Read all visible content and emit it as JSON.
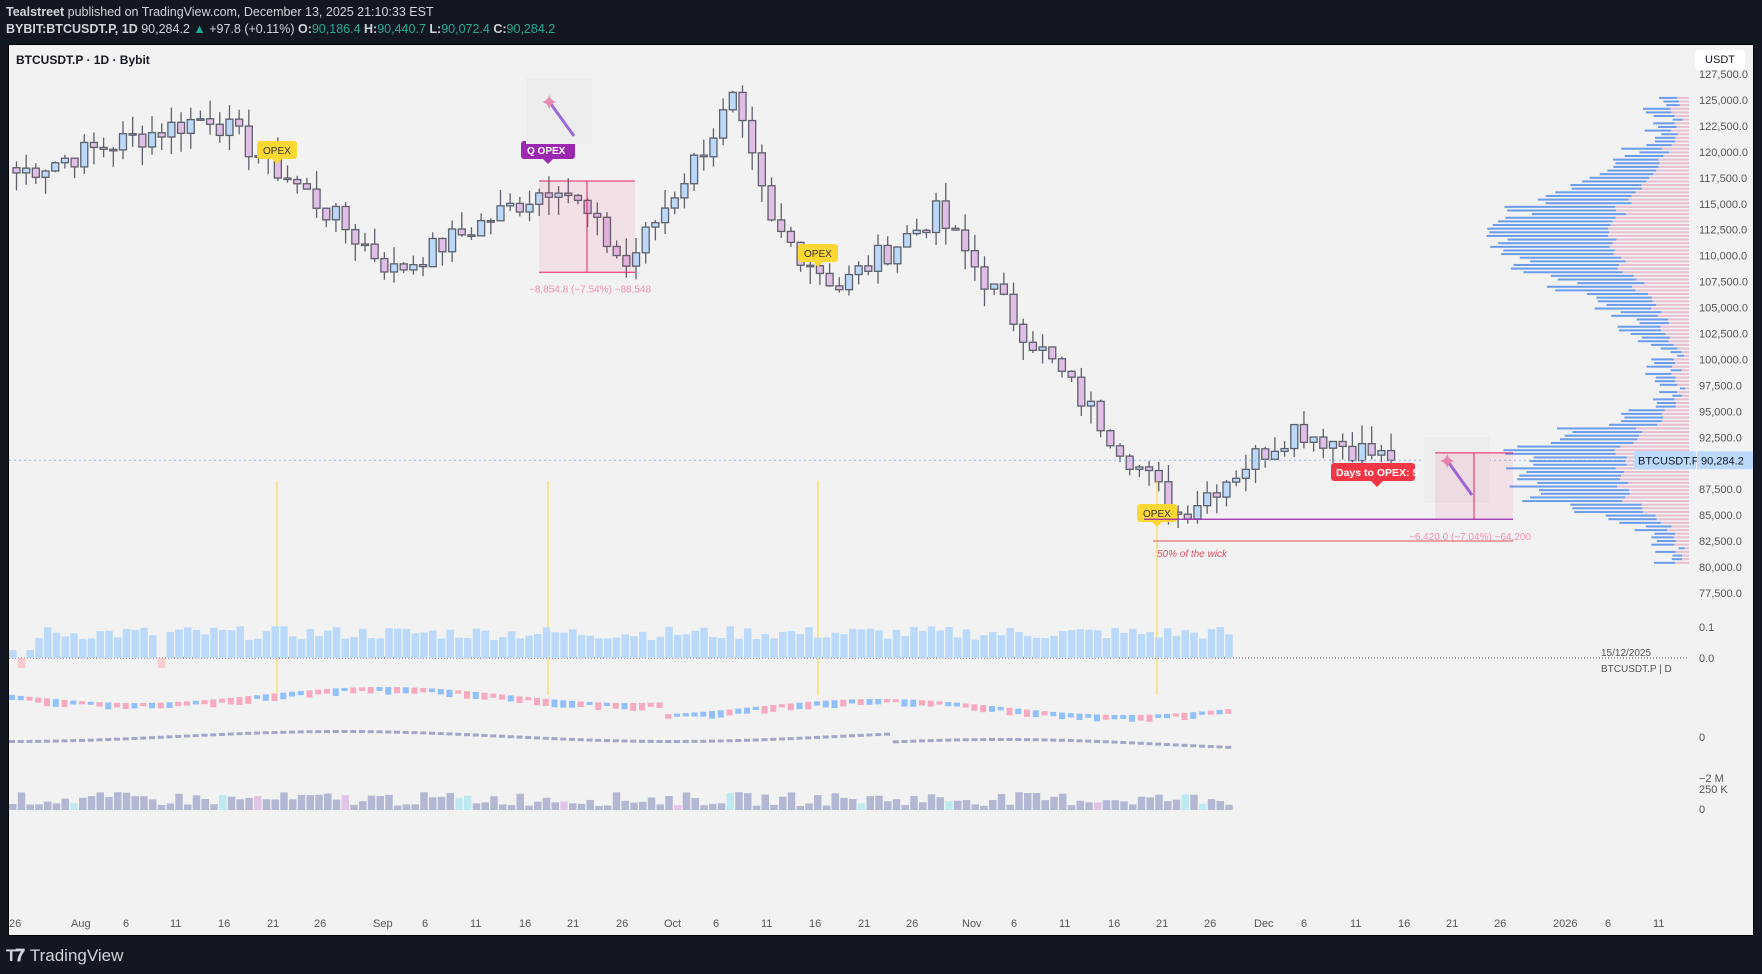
{
  "header": {
    "author": "Tealstreet",
    "published_text": " published on TradingView.com, December 13, 2025 21:10:33 EST",
    "symbol_line": "BYBIT:BTCUSDT.P, 1D",
    "last_price": "90,284.2",
    "change": "+97.8 (+0.11%)",
    "open_label": "O:",
    "open": "90,186.4",
    "high_label": "H:",
    "high": "90,440.7",
    "low_label": "L:",
    "low": "90,072.4",
    "close_label": "C:",
    "close": "90,284.2"
  },
  "chart_title": "BTCUSDT.P · 1D · Bybit",
  "currency_button": "USDT",
  "price_tag": {
    "symbol": "BTCUSDT.P",
    "value": "90,284.2"
  },
  "watermark": {
    "date": "15/12/2025",
    "symbol": "BTCUSDT.P | D"
  },
  "annotations": {
    "opex_labels": [
      "OPEX",
      "Q OPEX",
      "OPEX",
      "OPEX"
    ],
    "days_to_opex": "Days to OPEX: 5",
    "measure1": "−8,854.8 (−7.54%) −88,548",
    "measure2": "−6,420.0 (−7.04%) −64,200",
    "wick_note": "50% of the wick"
  },
  "footer": {
    "brand": "TradingView"
  },
  "colors": {
    "bull": "#bbd9fb",
    "bear": "#e1bee7",
    "outline": "#5d606b",
    "opex": "#fdd835",
    "qopex": "#9c27b0",
    "days_badge": "#f23645",
    "measure": "#e91e63",
    "vp_blue": "#6a9ceb",
    "vp_pink": "#e8bfd0"
  },
  "chart_data": {
    "type": "candlestick",
    "title": "BTCUSDT.P · 1D · Bybit",
    "xlabel": "",
    "ylabel": "USDT",
    "ylim": [
      77500,
      127500
    ],
    "y_ticks": [
      "127,500.0",
      "125,000.0",
      "122,500.0",
      "120,000.0",
      "117,500.0",
      "115,000.0",
      "112,500.0",
      "110,000.0",
      "107,500.0",
      "105,000.0",
      "102,500.0",
      "100,000.0",
      "97,500.0",
      "95,000.0",
      "92,500.0",
      "90,000.0",
      "87,500.0",
      "85,000.0",
      "82,500.0",
      "80,000.0",
      "77,500.0"
    ],
    "x_ticks": [
      "26",
      "Aug",
      "6",
      "11",
      "16",
      "21",
      "26",
      "Sep",
      "6",
      "11",
      "16",
      "21",
      "26",
      "Oct",
      "6",
      "11",
      "16",
      "21",
      "26",
      "Nov",
      "6",
      "11",
      "16",
      "21",
      "26",
      "Dec",
      "6",
      "11",
      "16",
      "21",
      "26",
      "2026",
      "6",
      "11"
    ],
    "approx_path_close": [
      {
        "date": "Jul 24",
        "close": 118000
      },
      {
        "date": "Aug 13",
        "close": 123500
      },
      {
        "date": "Aug 22",
        "close": 116800
      },
      {
        "date": "Sep 1",
        "close": 108500
      },
      {
        "date": "Sep 18",
        "close": 117200
      },
      {
        "date": "Sep 25",
        "close": 109000
      },
      {
        "date": "Oct 6",
        "close": 124800
      },
      {
        "date": "Oct 10",
        "close": 112800
      },
      {
        "date": "Oct 17",
        "close": 107000
      },
      {
        "date": "Oct 27",
        "close": 114000
      },
      {
        "date": "Nov 4",
        "close": 104000
      },
      {
        "date": "Nov 21",
        "close": 85100
      },
      {
        "date": "Dec 3",
        "close": 93400
      },
      {
        "date": "Dec 13",
        "close": 90284.2
      }
    ],
    "last": {
      "open": 90186.4,
      "high": 90440.7,
      "low": 90072.4,
      "close": 90284.2
    },
    "sub_panes": [
      {
        "name": "oscillator",
        "y_ticks": [
          "0.1",
          "0.0"
        ]
      },
      {
        "name": "candle-indicator",
        "y_ticks": [
          "0"
        ]
      },
      {
        "name": "volume",
        "y_ticks": [
          "−2 M",
          "250 K",
          "0"
        ]
      }
    ],
    "legend": [],
    "grid": false
  }
}
